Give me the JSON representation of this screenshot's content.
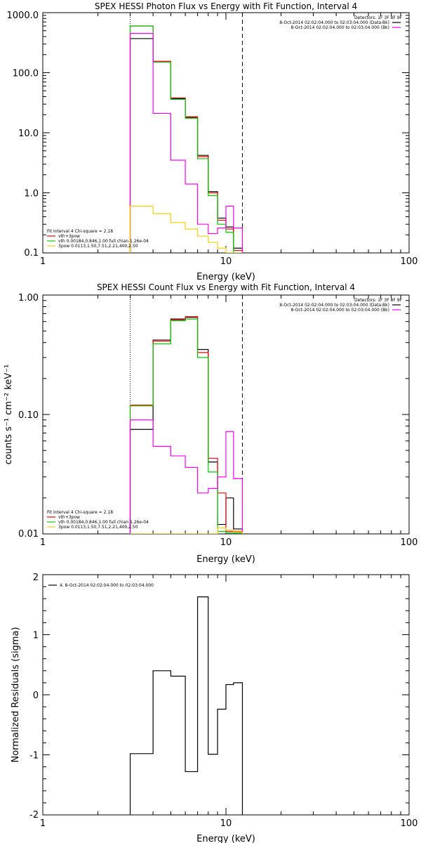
{
  "chart_data": [
    {
      "type": "line",
      "title": "SPEX HESSI Photon Flux vs Energy with Fit Function, Interval 4",
      "xlabel": "Energy (keV)",
      "ylabel": "",
      "xscale": "log",
      "yscale": "log",
      "xlim": [
        1,
        100
      ],
      "ylim": [
        0.1,
        1000
      ],
      "x_tick_labels": [
        "1",
        "10",
        "100"
      ],
      "y_tick_labels": [
        "0.1",
        "1.0",
        "10.0",
        "100.0",
        "1000.0"
      ],
      "y_ticks": [
        0.1,
        1,
        10,
        100,
        1000
      ],
      "vlines": [
        {
          "x": 3.0,
          "style": "dotted"
        },
        {
          "x": 12.3,
          "style": "dashed"
        }
      ],
      "info_legend": {
        "position": "top-right",
        "entries": [
          {
            "text": "Detectors: 1F 3F 8F 9F",
            "color": ""
          },
          {
            "text": "8-Oct-2014 02:02:04.000 to 02:03:04.000 (Data-Bk)",
            "color": "#000000"
          },
          {
            "text": "8-Oct-2014 02:02:04.000 to 02:03:04.000 (Bk)",
            "color": "#ff00ff"
          }
        ]
      },
      "fit_legend": {
        "position": "bottom-left",
        "entries": [
          {
            "text": "Fit Interval 4   Chi-square = 2.18",
            "color": ""
          },
          {
            "text": "vth+3pow",
            "color": "#ff0000"
          },
          {
            "text": "vth 0.00184,0.846,1.00  full chian 1.26e-04",
            "color": "#00cc00"
          },
          {
            "text": "3pow 0.0113,1.50,7.51,2.21,400,2.50",
            "color": "#ffcc00"
          }
        ]
      },
      "bin_edges": [
        3.0,
        4.0,
        5.0,
        6.0,
        7.0,
        8.0,
        9.0,
        10.0,
        11.0,
        12.3
      ],
      "series": [
        {
          "name": "Data-Bk",
          "color": "#000000",
          "values": [
            370,
            150,
            37,
            18,
            4.2,
            1.05,
            0.38,
            0.27,
            0.12
          ]
        },
        {
          "name": "vth+3pow",
          "color": "#ff0000",
          "values": [
            600,
            155,
            38,
            18.5,
            4.0,
            1.0,
            0.35,
            0.25,
            0.11
          ]
        },
        {
          "name": "vth",
          "color": "#00cc00",
          "values": [
            600,
            150,
            36,
            17.5,
            3.7,
            0.9,
            0.3,
            0.22,
            0.1
          ]
        },
        {
          "name": "Bk",
          "color": "#ff00ff",
          "values": [
            450,
            21,
            3.5,
            1.4,
            0.3,
            0.21,
            0.26,
            0.6,
            0.26
          ]
        },
        {
          "name": "3pow",
          "color": "#ffcc00",
          "values": [
            0.6,
            0.45,
            0.32,
            0.25,
            0.19,
            0.15,
            0.12,
            0.1,
            0.09
          ]
        }
      ]
    },
    {
      "type": "line",
      "title": "SPEX HESSI Count Flux vs Energy with Fit Function, Interval 4",
      "xlabel": "Energy (keV)",
      "ylabel": "counts s⁻¹ cm⁻² keV⁻¹",
      "xscale": "log",
      "yscale": "log",
      "xlim": [
        1,
        100
      ],
      "ylim": [
        0.01,
        1.0
      ],
      "x_tick_labels": [
        "1",
        "10",
        "100"
      ],
      "y_tick_labels": [
        "0.01",
        "0.10",
        "1.00"
      ],
      "y_ticks": [
        0.01,
        0.1,
        1.0
      ],
      "vlines": [
        {
          "x": 3.0,
          "style": "dotted"
        },
        {
          "x": 12.3,
          "style": "dashed"
        }
      ],
      "info_legend": {
        "position": "top-right",
        "entries": [
          {
            "text": "Detectors: 1F 3F 8F 9F",
            "color": ""
          },
          {
            "text": "8-Oct-2014 02:02:04.000 to 02:03:04.000 (Data-Bk)",
            "color": "#000000"
          },
          {
            "text": "8-Oct-2014 02:02:04.000 to 02:03:04.000 (Bk)",
            "color": "#ff00ff"
          }
        ]
      },
      "fit_legend": {
        "position": "bottom-left",
        "entries": [
          {
            "text": "Fit Interval 4   Chi-square = 2.18",
            "color": ""
          },
          {
            "text": "vth+3pow",
            "color": "#ff0000"
          },
          {
            "text": "vth 0.00184,0.846,1.00  full chian 1.26e-04",
            "color": "#00cc00"
          },
          {
            "text": "3pow 0.0113,1.50,7.51,2.21,400,2.50",
            "color": "#ffcc00"
          }
        ]
      },
      "bin_edges": [
        3.0,
        4.0,
        5.0,
        6.0,
        7.0,
        8.0,
        9.0,
        10.0,
        11.0,
        12.3
      ],
      "series": [
        {
          "name": "Data-Bk",
          "color": "#000000",
          "values": [
            0.075,
            0.42,
            0.63,
            0.65,
            0.35,
            0.04,
            0.012,
            0.02,
            0.011
          ]
        },
        {
          "name": "vth+3pow",
          "color": "#ff0000",
          "values": [
            0.12,
            0.41,
            0.62,
            0.66,
            0.33,
            0.043,
            0.022,
            0.0105,
            0.0105
          ]
        },
        {
          "name": "vth",
          "color": "#00cc00",
          "values": [
            0.118,
            0.39,
            0.61,
            0.63,
            0.3,
            0.033,
            0.0105,
            0.0102,
            0.0102
          ]
        },
        {
          "name": "Bk",
          "color": "#ff00ff",
          "values": [
            0.09,
            0.054,
            0.045,
            0.036,
            0.022,
            0.024,
            0.03,
            0.072,
            0.029
          ]
        },
        {
          "name": "3pow",
          "color": "#ffcc00",
          "values": [
            0.0085,
            0.009,
            0.0092,
            0.0095,
            0.0096,
            0.0098,
            0.0112,
            0.0108,
            0.0104
          ]
        }
      ]
    },
    {
      "type": "line",
      "title": "",
      "xlabel": "Energy (keV)",
      "ylabel": "Normalized Residuals (sigma)",
      "xscale": "log",
      "yscale": "linear",
      "xlim": [
        1,
        100
      ],
      "ylim": [
        -2,
        2
      ],
      "x_tick_labels": [
        "1",
        "10",
        "100"
      ],
      "y_tick_labels": [
        "-2",
        "-1",
        "0",
        "1",
        "2"
      ],
      "y_ticks": [
        -2,
        -1,
        0,
        1,
        2
      ],
      "legend": {
        "position": "top-left",
        "entries": [
          {
            "text": "4.  8-Oct-2014 02:02:04.000 to 02:03:04.000",
            "color": "#000000"
          }
        ]
      },
      "bin_edges": [
        3.0,
        4.0,
        5.0,
        6.0,
        7.0,
        8.0,
        9.0,
        10.0,
        11.0,
        12.3
      ],
      "series": [
        {
          "name": "Residuals",
          "color": "#000000",
          "values": [
            -0.98,
            0.4,
            0.31,
            -1.28,
            1.63,
            -0.99,
            -0.24,
            0.17,
            0.2
          ]
        }
      ]
    }
  ]
}
